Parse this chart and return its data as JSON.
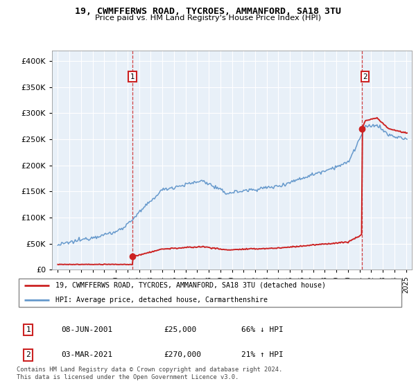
{
  "title": "19, CWMFFERWS ROAD, TYCROES, AMMANFORD, SA18 3TU",
  "subtitle": "Price paid vs. HM Land Registry's House Price Index (HPI)",
  "legend_line1": "19, CWMFFERWS ROAD, TYCROES, AMMANFORD, SA18 3TU (detached house)",
  "legend_line2": "HPI: Average price, detached house, Carmarthenshire",
  "table_row1": [
    "1",
    "08-JUN-2001",
    "£25,000",
    "66% ↓ HPI"
  ],
  "table_row2": [
    "2",
    "03-MAR-2021",
    "£270,000",
    "21% ↑ HPI"
  ],
  "footnote": "Contains HM Land Registry data © Crown copyright and database right 2024.\nThis data is licensed under the Open Government Licence v3.0.",
  "hpi_color": "#6699cc",
  "price_color": "#cc2222",
  "vline1_x": 2001.44,
  "vline2_x": 2021.17,
  "sale1_x": 2001.44,
  "sale1_y": 25000,
  "sale2_x": 2021.17,
  "sale2_y": 270000,
  "ylim": [
    0,
    420000
  ],
  "yticks": [
    0,
    50000,
    100000,
    150000,
    200000,
    250000,
    300000,
    350000,
    400000
  ],
  "xlim": [
    1994.5,
    2025.5
  ],
  "background_color": "#ffffff",
  "plot_bg_color": "#e8f0f8",
  "grid_color": "#ffffff"
}
